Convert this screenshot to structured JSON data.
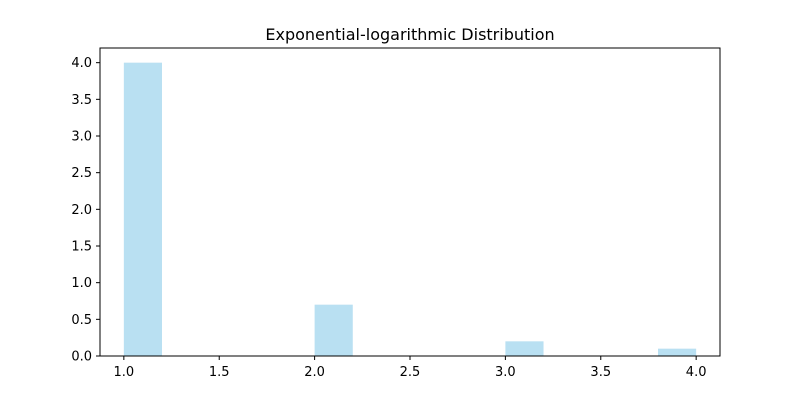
{
  "chart_data": {
    "type": "bar",
    "title": "Exponential-logarithmic Distribution",
    "xlabel": "",
    "ylabel": "",
    "x": [
      1.1,
      2.1,
      3.1,
      3.9
    ],
    "values": [
      4.0,
      0.7,
      0.2,
      0.1
    ],
    "bar_width": 0.2,
    "xlim": [
      0.875,
      4.125
    ],
    "ylim": [
      0,
      4.2
    ],
    "x_ticks": [
      "1.0",
      "1.5",
      "2.0",
      "2.5",
      "3.0",
      "3.5",
      "4.0"
    ],
    "y_ticks": [
      "0.0",
      "0.5",
      "1.0",
      "1.5",
      "2.0",
      "2.5",
      "3.0",
      "3.5",
      "4.0"
    ],
    "grid": false,
    "bar_color": "#b9e0f2",
    "bar_alpha": 1.0
  }
}
